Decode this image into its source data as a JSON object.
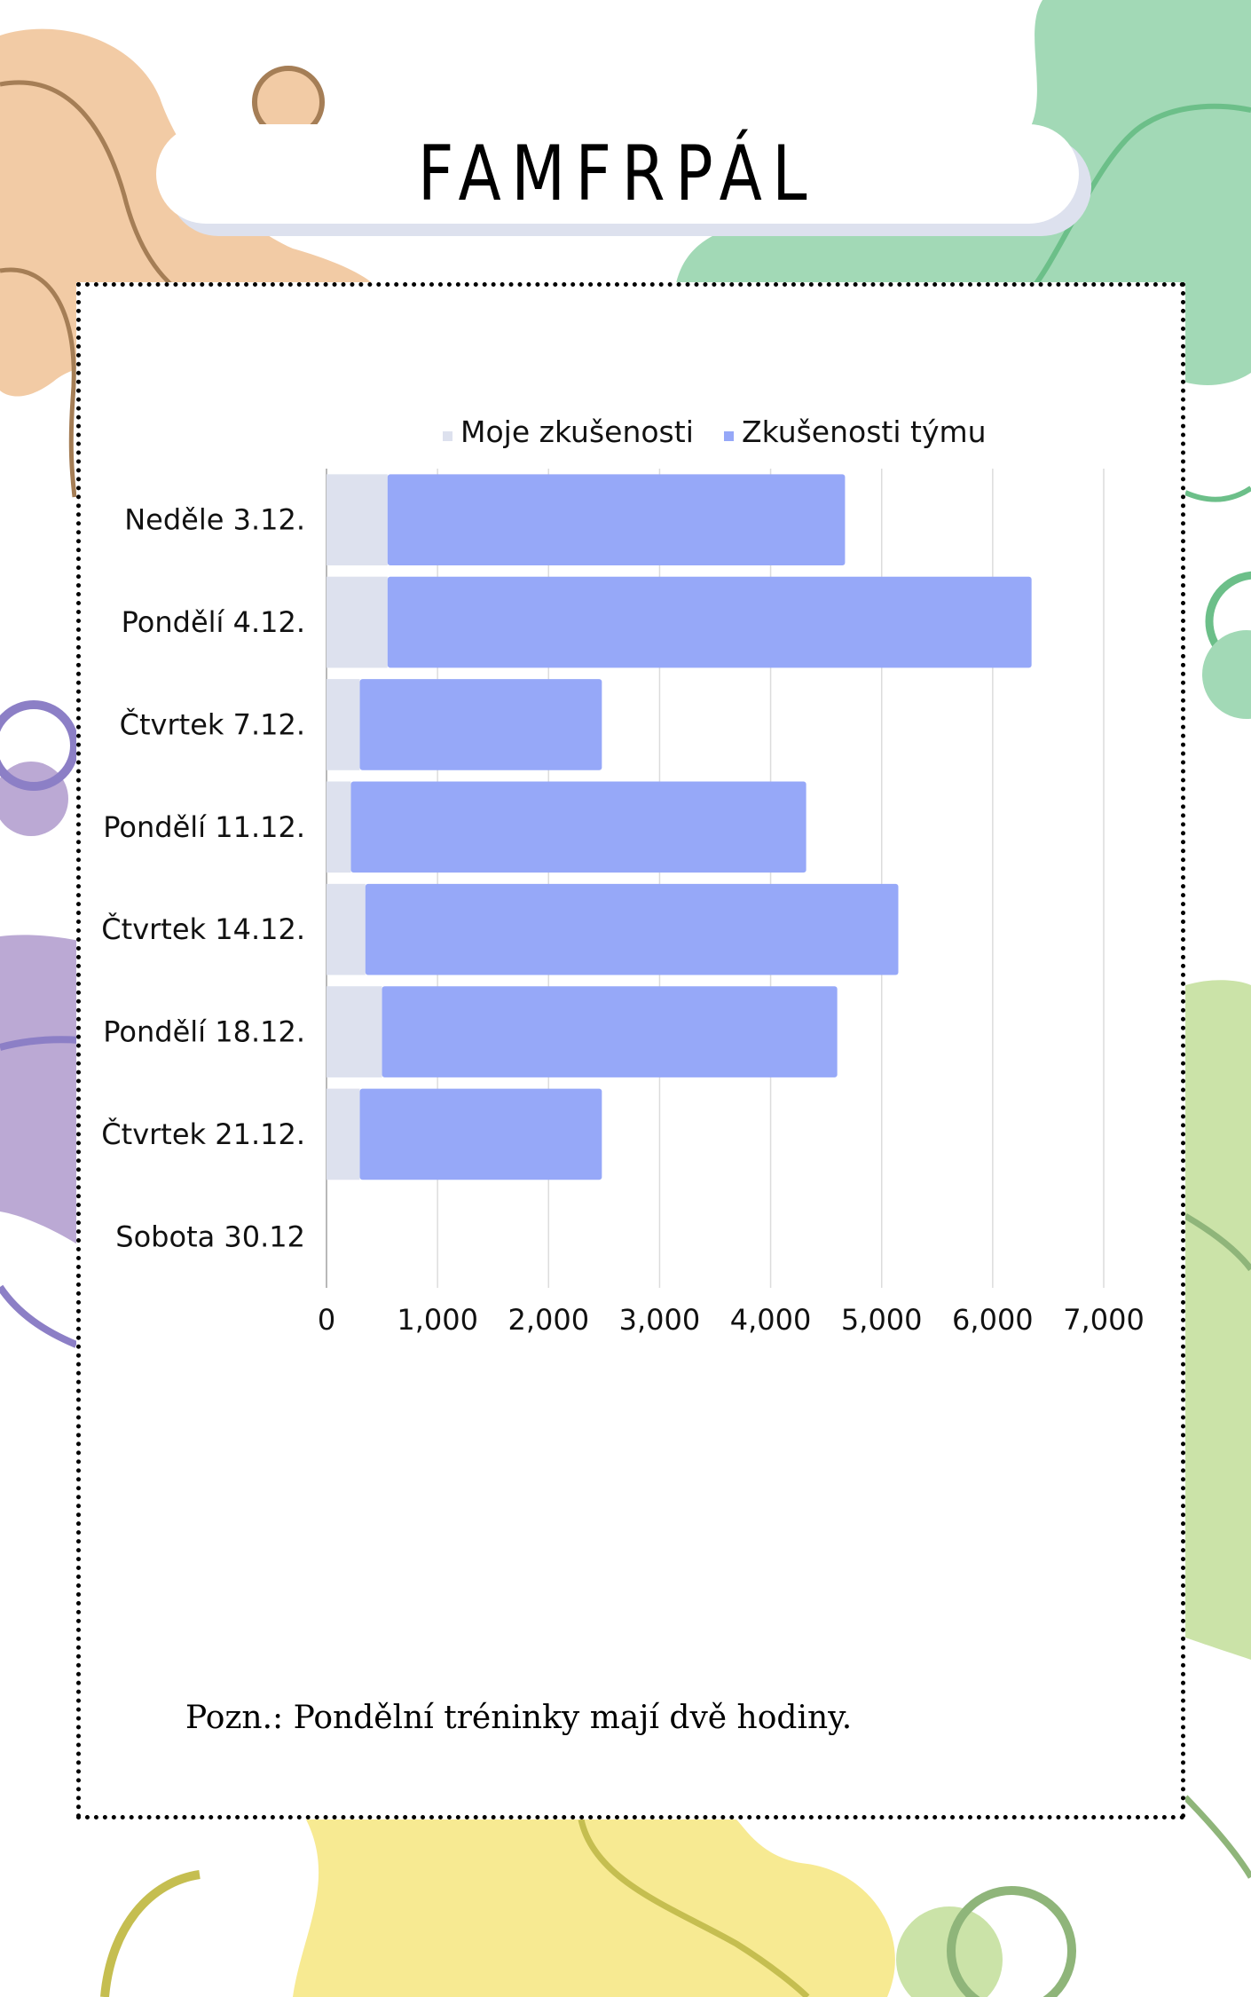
{
  "page": {
    "title": "FAMFRPÁL",
    "note": "Pozn.: Pondělní tréninky mají dvě hodiny."
  },
  "colors": {
    "series_my": "#dde1ee",
    "series_team": "#96a8f8",
    "orange_blob": "#f2cba5",
    "green_blob": "#a2d9b6",
    "purple_blob": "#bba9d4",
    "lime_blob": "#cbe3a8",
    "yellow_blob": "#f7ea92"
  },
  "chart_data": {
    "type": "bar",
    "orientation": "horizontal",
    "stacked": true,
    "categories": [
      "Neděle 3.12.",
      "Pondělí 4.12.",
      "Čtvrtek 7.12.",
      "Pondělí 11.12.",
      "Čtvrtek 14.12.",
      "Pondělí 18.12.",
      "Čtvrtek 21.12.",
      "Sobota 30.12"
    ],
    "series": [
      {
        "name": "Moje zkušenosti",
        "values": [
          550,
          550,
          300,
          220,
          350,
          500,
          300,
          0
        ]
      },
      {
        "name": "Zkušenosti týmu",
        "values": [
          4120,
          5800,
          2180,
          4100,
          4800,
          4100,
          2180,
          0
        ]
      }
    ],
    "x_ticks": [
      "0",
      "1,000",
      "2,000",
      "3,000",
      "4,000",
      "5,000",
      "6,000",
      "7,000"
    ],
    "xlim": [
      0,
      7000
    ],
    "grid": true,
    "legend": "top"
  }
}
